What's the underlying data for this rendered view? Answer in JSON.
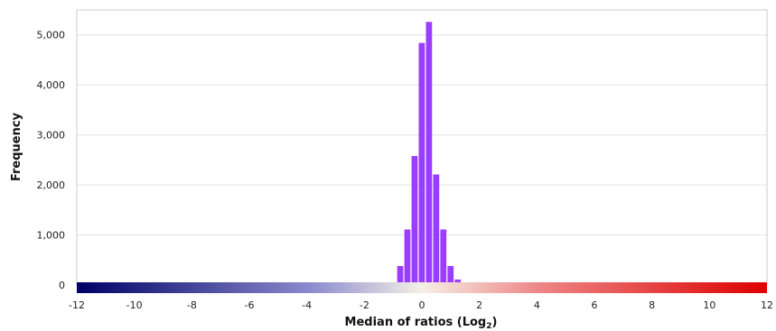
{
  "chart_data": {
    "type": "bar",
    "xlabel": "Median of ratios (Log",
    "xlabel_subscript": "2",
    "xlabel_suffix": ")",
    "ylabel": "Frequency",
    "xlim": [
      -12,
      12
    ],
    "ylim": [
      0,
      5500
    ],
    "grid": "horizontal",
    "bar_color": "#9B3DFF",
    "bar_width": 0.25,
    "x_ticks": [
      -12,
      -10,
      -8,
      -6,
      -4,
      -2,
      0,
      2,
      4,
      6,
      8,
      10,
      12
    ],
    "x_tick_labels": [
      "-12",
      "-10",
      "-8",
      "-6",
      "-4",
      "-2",
      "0",
      "2",
      "4",
      "6",
      "8",
      "10",
      "12"
    ],
    "y_ticks": [
      0,
      1000,
      2000,
      3000,
      4000,
      5000
    ],
    "y_tick_labels": [
      "0",
      "1,000",
      "2,000",
      "3,000",
      "4,000",
      "5,000"
    ],
    "colorbar": {
      "stops": [
        {
          "value": -12,
          "color": "#000066"
        },
        {
          "value": -4,
          "color": "#8888cc"
        },
        {
          "value": 0,
          "color": "#f5f0e6"
        },
        {
          "value": 4,
          "color": "#ee8888"
        },
        {
          "value": 12,
          "color": "#dd0000"
        }
      ]
    },
    "x": [
      -4.75,
      -1.75,
      -1.5,
      -1.25,
      -1.0,
      -0.75,
      -0.5,
      -0.25,
      0.0,
      0.25,
      0.5,
      0.75,
      1.0,
      1.25,
      1.5,
      1.75,
      2.0,
      2.25,
      3.5,
      10.25
    ],
    "values": [
      15,
      10,
      15,
      20,
      55,
      380,
      1110,
      2580,
      4840,
      5260,
      2210,
      1110,
      380,
      110,
      30,
      15,
      20,
      15,
      10,
      10
    ]
  }
}
